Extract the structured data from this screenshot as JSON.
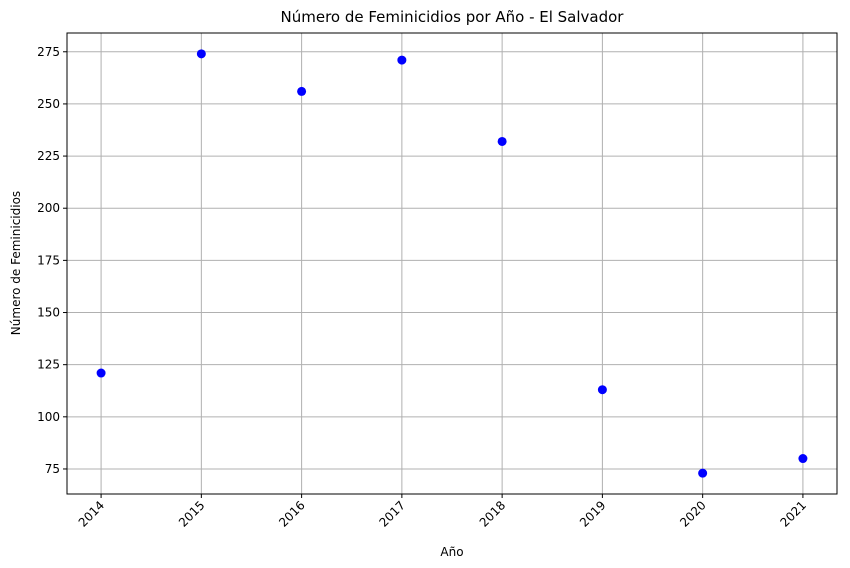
{
  "chart_data": {
    "type": "scatter",
    "title": "Número de Feminicidios por Año - El Salvador",
    "xlabel": "Año",
    "ylabel": "Número de Feminicidios",
    "x": [
      "2014",
      "2015",
      "2016",
      "2017",
      "2018",
      "2019",
      "2020",
      "2021"
    ],
    "y": [
      121,
      274,
      256,
      271,
      232,
      113,
      73,
      80
    ],
    "yticks": [
      75,
      100,
      125,
      150,
      175,
      200,
      225,
      250,
      275
    ],
    "xlim": [
      2013.66,
      2021.34
    ],
    "ylim": [
      63,
      284
    ],
    "grid": true,
    "xtick_rotation": 45,
    "marker_color": "#0000ff",
    "grid_color": "#b0b0b0"
  }
}
